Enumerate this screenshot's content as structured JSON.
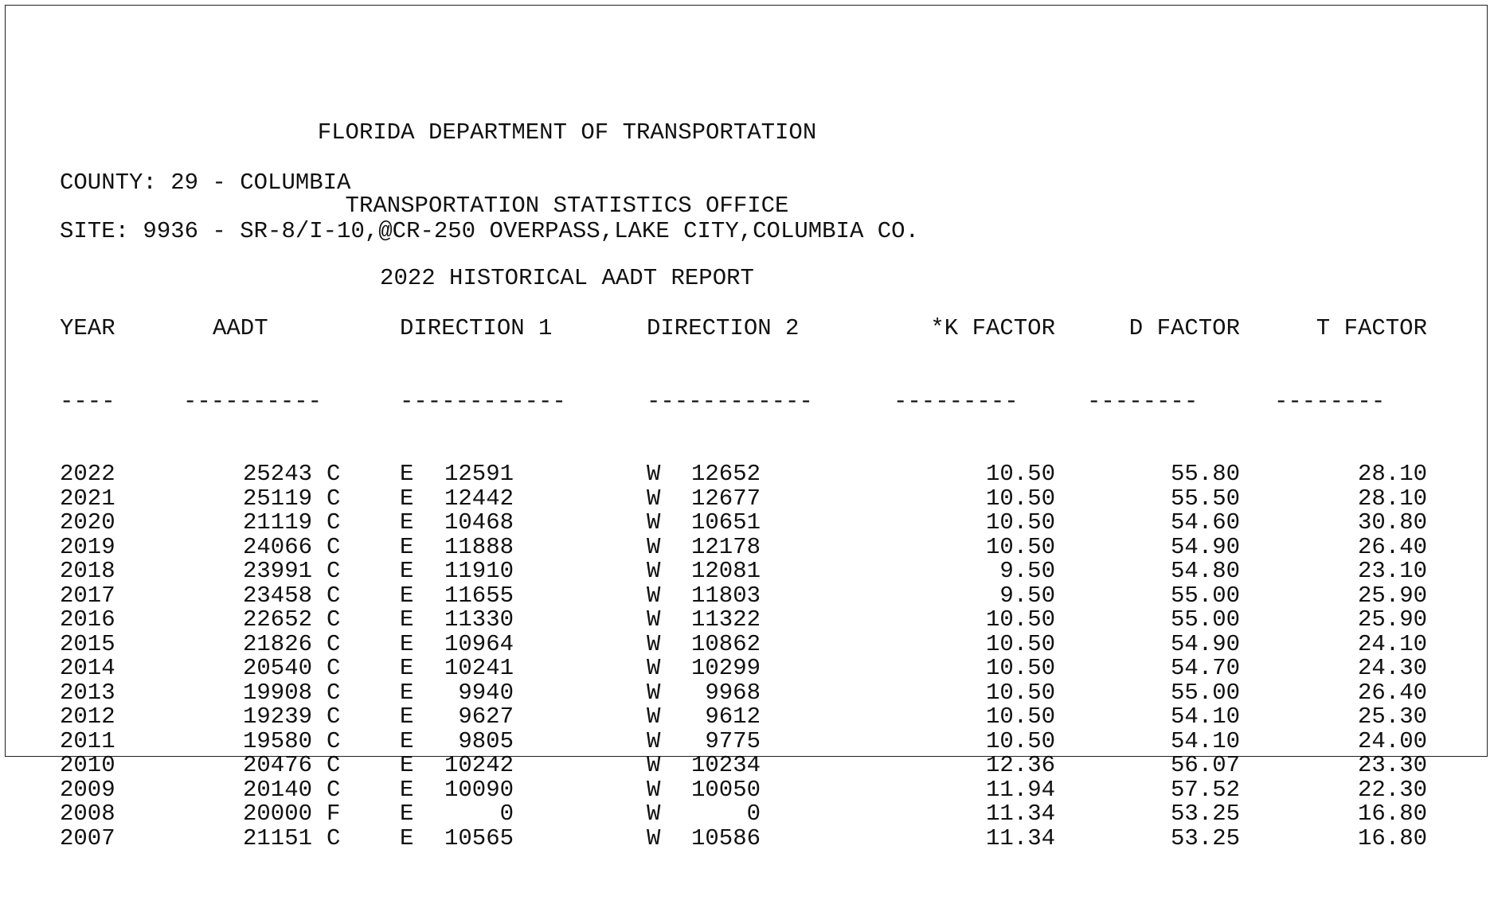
{
  "header": {
    "line1": "FLORIDA DEPARTMENT OF TRANSPORTATION",
    "line2": "TRANSPORTATION STATISTICS OFFICE",
    "line3": "2022 HISTORICAL AADT REPORT"
  },
  "county": "COUNTY: 29 - COLUMBIA",
  "site": "SITE: 9936 - SR-8/I-10,@CR-250 OVERPASS,LAKE CITY,COLUMBIA CO.",
  "columns": {
    "year": "YEAR",
    "aadt": "AADT",
    "dir1": "DIRECTION 1",
    "dir2": "DIRECTION 2",
    "k": "*K FACTOR",
    "d": "D FACTOR",
    "t": "T FACTOR"
  },
  "dashes": {
    "year": "----",
    "aadt": "----------",
    "dir1": "------------",
    "dir2": "------------",
    "k": "---------",
    "d": "--------",
    "t": "--------"
  },
  "rows": [
    {
      "year": "2022",
      "aadt": "25243",
      "q": "C",
      "d1": "E",
      "v1": "12591",
      "d2": "W",
      "v2": "12652",
      "k": "10.50",
      "d": "55.80",
      "t": "28.10"
    },
    {
      "year": "2021",
      "aadt": "25119",
      "q": "C",
      "d1": "E",
      "v1": "12442",
      "d2": "W",
      "v2": "12677",
      "k": "10.50",
      "d": "55.50",
      "t": "28.10"
    },
    {
      "year": "2020",
      "aadt": "21119",
      "q": "C",
      "d1": "E",
      "v1": "10468",
      "d2": "W",
      "v2": "10651",
      "k": "10.50",
      "d": "54.60",
      "t": "30.80"
    },
    {
      "year": "2019",
      "aadt": "24066",
      "q": "C",
      "d1": "E",
      "v1": "11888",
      "d2": "W",
      "v2": "12178",
      "k": "10.50",
      "d": "54.90",
      "t": "26.40"
    },
    {
      "year": "2018",
      "aadt": "23991",
      "q": "C",
      "d1": "E",
      "v1": "11910",
      "d2": "W",
      "v2": "12081",
      "k": "9.50",
      "d": "54.80",
      "t": "23.10"
    },
    {
      "year": "2017",
      "aadt": "23458",
      "q": "C",
      "d1": "E",
      "v1": "11655",
      "d2": "W",
      "v2": "11803",
      "k": "9.50",
      "d": "55.00",
      "t": "25.90"
    },
    {
      "year": "2016",
      "aadt": "22652",
      "q": "C",
      "d1": "E",
      "v1": "11330",
      "d2": "W",
      "v2": "11322",
      "k": "10.50",
      "d": "55.00",
      "t": "25.90"
    },
    {
      "year": "2015",
      "aadt": "21826",
      "q": "C",
      "d1": "E",
      "v1": "10964",
      "d2": "W",
      "v2": "10862",
      "k": "10.50",
      "d": "54.90",
      "t": "24.10"
    },
    {
      "year": "2014",
      "aadt": "20540",
      "q": "C",
      "d1": "E",
      "v1": "10241",
      "d2": "W",
      "v2": "10299",
      "k": "10.50",
      "d": "54.70",
      "t": "24.30"
    },
    {
      "year": "2013",
      "aadt": "19908",
      "q": "C",
      "d1": "E",
      "v1": "9940",
      "d2": "W",
      "v2": "9968",
      "k": "10.50",
      "d": "55.00",
      "t": "26.40"
    },
    {
      "year": "2012",
      "aadt": "19239",
      "q": "C",
      "d1": "E",
      "v1": "9627",
      "d2": "W",
      "v2": "9612",
      "k": "10.50",
      "d": "54.10",
      "t": "25.30"
    },
    {
      "year": "2011",
      "aadt": "19580",
      "q": "C",
      "d1": "E",
      "v1": "9805",
      "d2": "W",
      "v2": "9775",
      "k": "10.50",
      "d": "54.10",
      "t": "24.00"
    },
    {
      "year": "2010",
      "aadt": "20476",
      "q": "C",
      "d1": "E",
      "v1": "10242",
      "d2": "W",
      "v2": "10234",
      "k": "12.36",
      "d": "56.07",
      "t": "23.30"
    },
    {
      "year": "2009",
      "aadt": "20140",
      "q": "C",
      "d1": "E",
      "v1": "10090",
      "d2": "W",
      "v2": "10050",
      "k": "11.94",
      "d": "57.52",
      "t": "22.30"
    },
    {
      "year": "2008",
      "aadt": "20000",
      "q": "F",
      "d1": "E",
      "v1": "0",
      "d2": "W",
      "v2": "0",
      "k": "11.34",
      "d": "53.25",
      "t": "16.80"
    },
    {
      "year": "2007",
      "aadt": "21151",
      "q": "C",
      "d1": "E",
      "v1": "10565",
      "d2": "W",
      "v2": "10586",
      "k": "11.34",
      "d": "53.25",
      "t": "16.80"
    }
  ]
}
